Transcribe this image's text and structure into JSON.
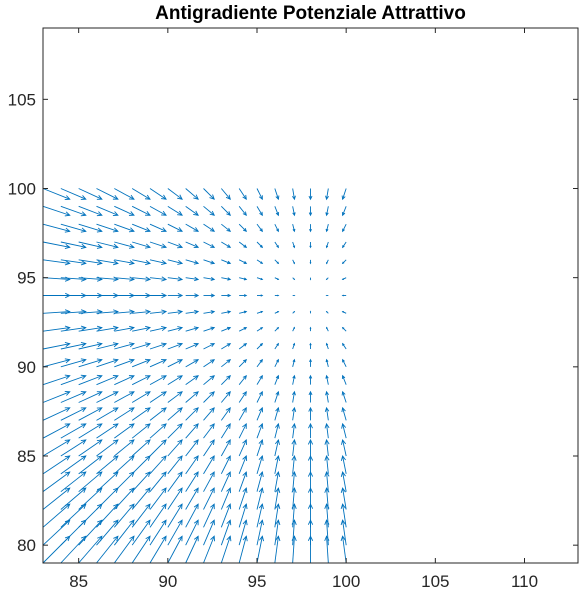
{
  "chart_data": {
    "type": "quiver",
    "title": "Antigradiente Potenziale Attrattivo",
    "xlabel": "",
    "ylabel": "",
    "xlim": [
      83,
      113
    ],
    "ylim": [
      79,
      109
    ],
    "xticks": [
      85,
      90,
      95,
      100,
      105,
      110
    ],
    "yticks": [
      80,
      85,
      90,
      95,
      100,
      105
    ],
    "grid": false,
    "box": true,
    "field": {
      "description_source": "arrow field",
      "x_range": [
        83,
        100
      ],
      "y_range": [
        79,
        100
      ],
      "x_step": 1,
      "y_step": 1,
      "goal": [
        98,
        94
      ],
      "arrow_scale": 0.1
    },
    "colors": {
      "arrow": "#0072BD",
      "axes": "#262626",
      "tick_text": "#262626",
      "title": "#000000"
    }
  }
}
